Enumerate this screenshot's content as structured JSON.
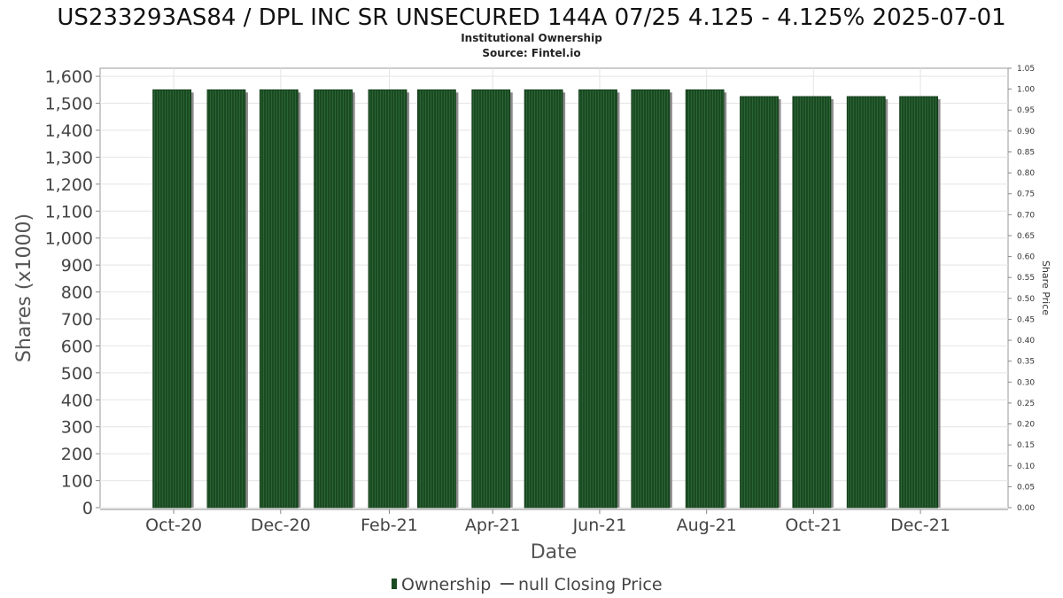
{
  "chart_data": {
    "type": "bar",
    "title": "US233293AS84 / DPL INC SR UNSECURED 144A 07/25 4.125 - 4.125% 2025-07-01",
    "subtitle_lines": [
      "Institutional Ownership",
      "Source: Fintel.io"
    ],
    "xlabel": "Date",
    "ylabel": "Shares (x1000)",
    "y2label": "Share Price",
    "ylim": [
      0,
      1630
    ],
    "y2lim": [
      0,
      1.05
    ],
    "yticks": [
      0,
      100,
      200,
      300,
      400,
      500,
      600,
      700,
      800,
      900,
      1000,
      1100,
      1200,
      1300,
      1400,
      1500,
      1600
    ],
    "ytick_labels": [
      "0",
      "100",
      "200",
      "300",
      "400",
      "500",
      "600",
      "700",
      "800",
      "900",
      "1,000",
      "1,100",
      "1,200",
      "1,300",
      "1,400",
      "1,500",
      "1,600"
    ],
    "y2ticks": [
      "0.00",
      "0.05",
      "0.10",
      "0.15",
      "0.20",
      "0.25",
      "0.30",
      "0.35",
      "0.40",
      "0.45",
      "0.50",
      "0.55",
      "0.60",
      "0.65",
      "0.70",
      "0.75",
      "0.80",
      "0.85",
      "0.90",
      "0.95",
      "1.00",
      "1.05"
    ],
    "x_tick_labels": [
      "Oct-20",
      "Dec-20",
      "Feb-21",
      "Apr-21",
      "Jun-21",
      "Aug-21",
      "Oct-21",
      "Dec-21"
    ],
    "x_tick_dates": [
      "2020-10-01",
      "2020-12-01",
      "2021-02-01",
      "2021-04-01",
      "2021-06-01",
      "2021-08-01",
      "2021-10-01",
      "2021-12-01"
    ],
    "x_range": [
      "2020-08-20",
      "2022-01-20"
    ],
    "series": [
      {
        "name": "Ownership",
        "color": "#1a4a22",
        "x": [
          "2020-09-30",
          "2020-10-31",
          "2020-11-30",
          "2020-12-31",
          "2021-01-31",
          "2021-02-28",
          "2021-03-31",
          "2021-04-30",
          "2021-05-31",
          "2021-06-30",
          "2021-07-31",
          "2021-08-31",
          "2021-09-30",
          "2021-10-31",
          "2021-11-30"
        ],
        "values": [
          1550,
          1550,
          1550,
          1550,
          1550,
          1550,
          1550,
          1550,
          1550,
          1550,
          1550,
          1525,
          1525,
          1525,
          1525
        ]
      },
      {
        "name": "null Closing Price",
        "color": "#555555",
        "x": [],
        "values": []
      }
    ],
    "grid": true,
    "legend_position": "bottom-center"
  }
}
